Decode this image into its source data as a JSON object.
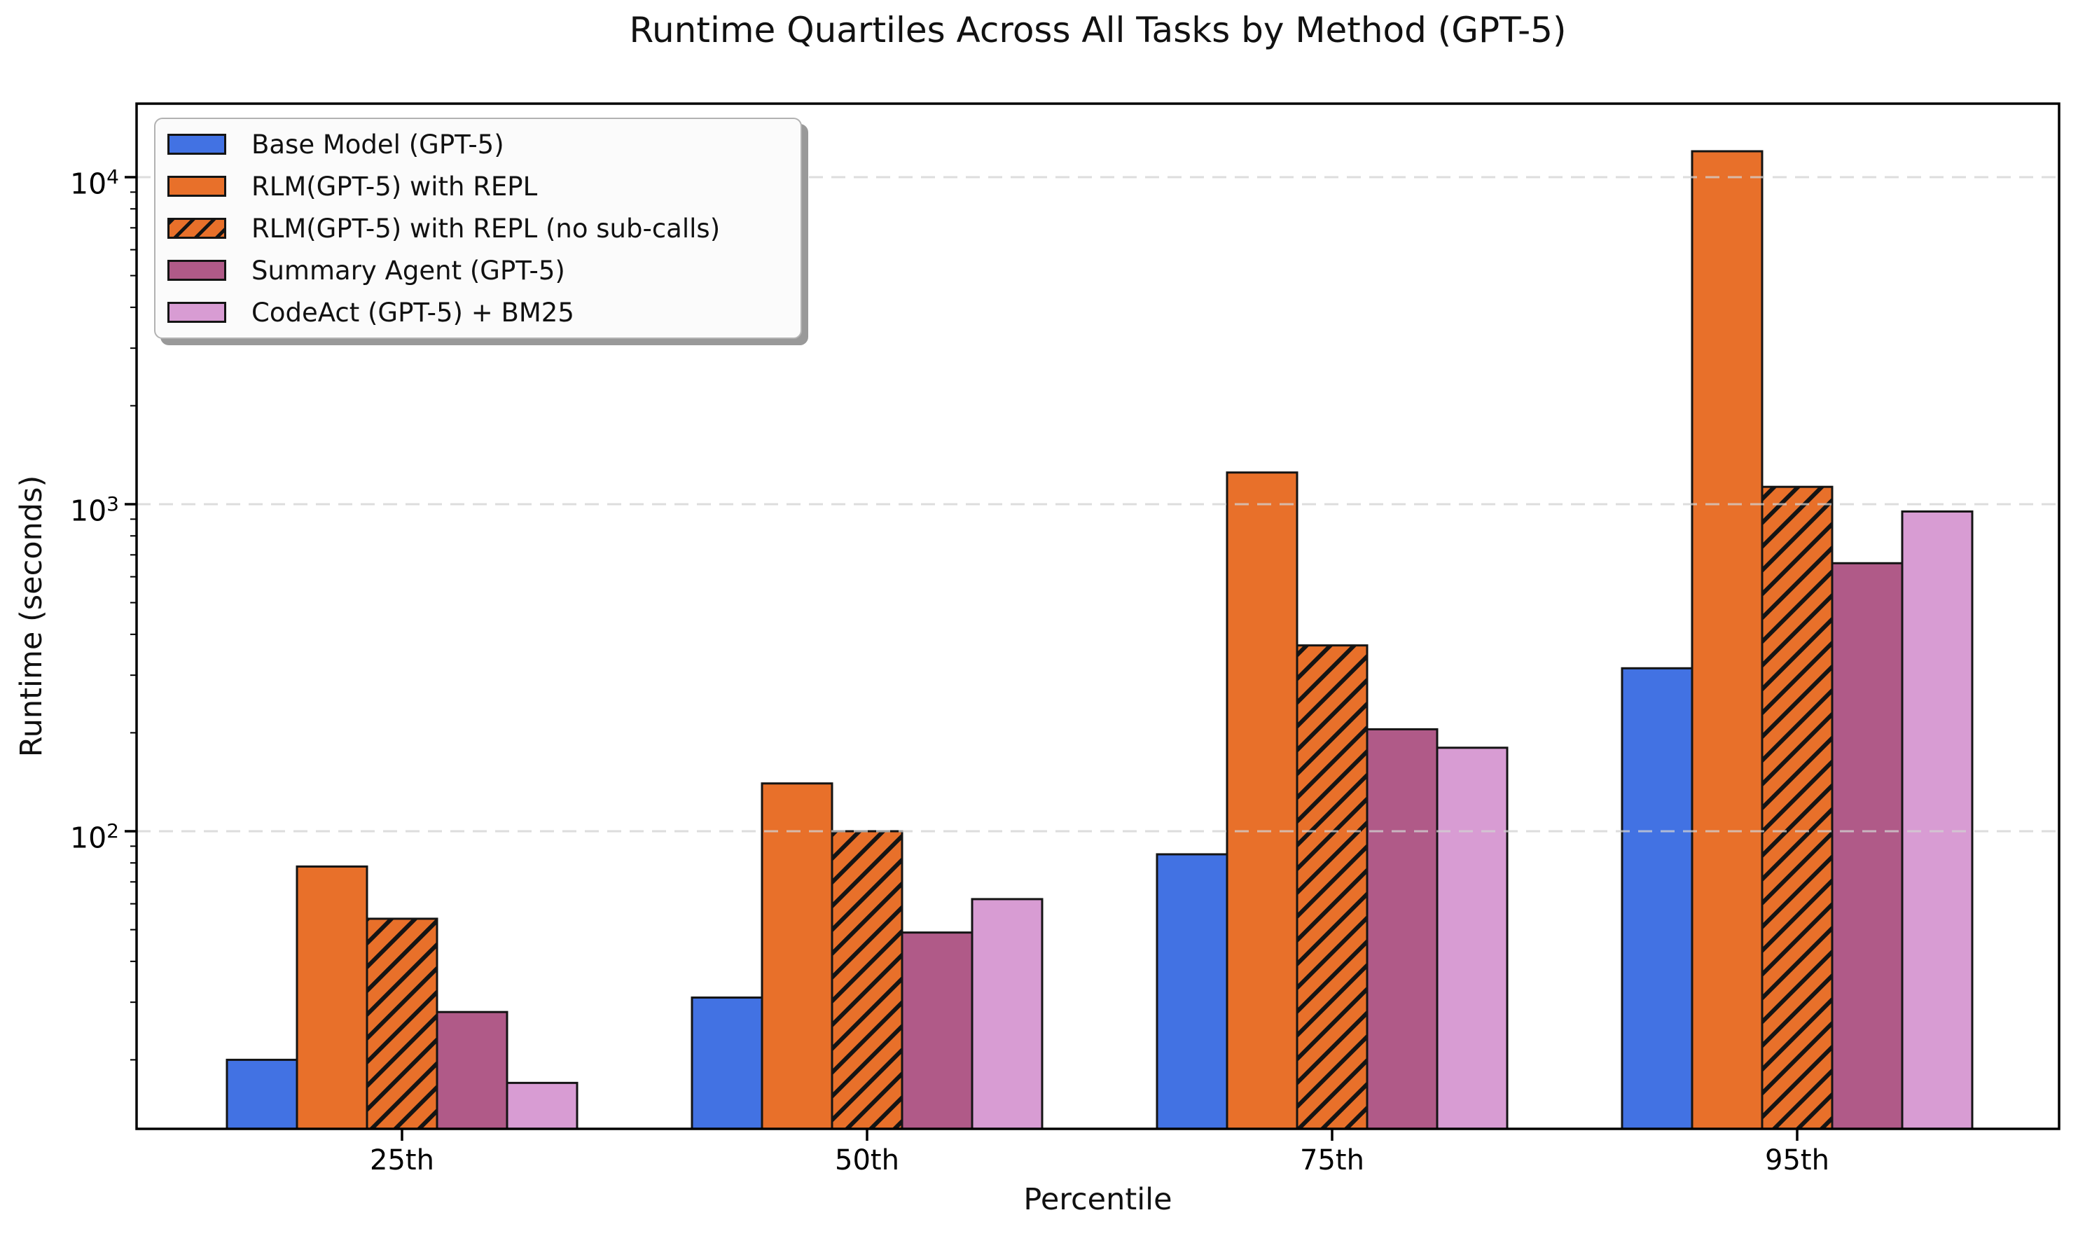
{
  "chart_data": {
    "type": "bar",
    "title": "Runtime Quartiles Across All Tasks by Method (GPT-5)",
    "xlabel": "Percentile",
    "ylabel": "Runtime (seconds)",
    "yscale": "log",
    "ylim": [
      12.3,
      16800
    ],
    "grid": {
      "axis": "y",
      "style": "dashed",
      "color": "#d2d2d2",
      "at": [
        100,
        1000,
        10000
      ],
      "drawn_above_bars": true
    },
    "legend_position": "upper left",
    "categories": [
      "25th",
      "50th",
      "75th",
      "95th"
    ],
    "yticks": [
      {
        "value": 100,
        "base": "10",
        "exp": "2"
      },
      {
        "value": 1000,
        "base": "10",
        "exp": "3"
      },
      {
        "value": 10000,
        "base": "10",
        "exp": "4"
      }
    ],
    "edge_color": "#141414",
    "series": [
      {
        "name": "Base Model (GPT-5)",
        "color": "#4272E3",
        "hatch": false,
        "values": [
          20,
          31,
          85,
          315
        ]
      },
      {
        "name": "RLM(GPT-5) with REPL",
        "color": "#E8702A",
        "hatch": false,
        "values": [
          78,
          140,
          1250,
          12000
        ]
      },
      {
        "name": "RLM(GPT-5) with REPL (no sub-calls)",
        "color": "#E8702A",
        "hatch": true,
        "values": [
          54,
          100,
          370,
          1130
        ]
      },
      {
        "name": "Summary Agent (GPT-5)",
        "color": "#B05A88",
        "hatch": false,
        "values": [
          28,
          49,
          205,
          660
        ]
      },
      {
        "name": "CodeAct (GPT-5) + BM25",
        "color": "#D89CD3",
        "hatch": false,
        "values": [
          17,
          62,
          180,
          950
        ]
      }
    ]
  }
}
